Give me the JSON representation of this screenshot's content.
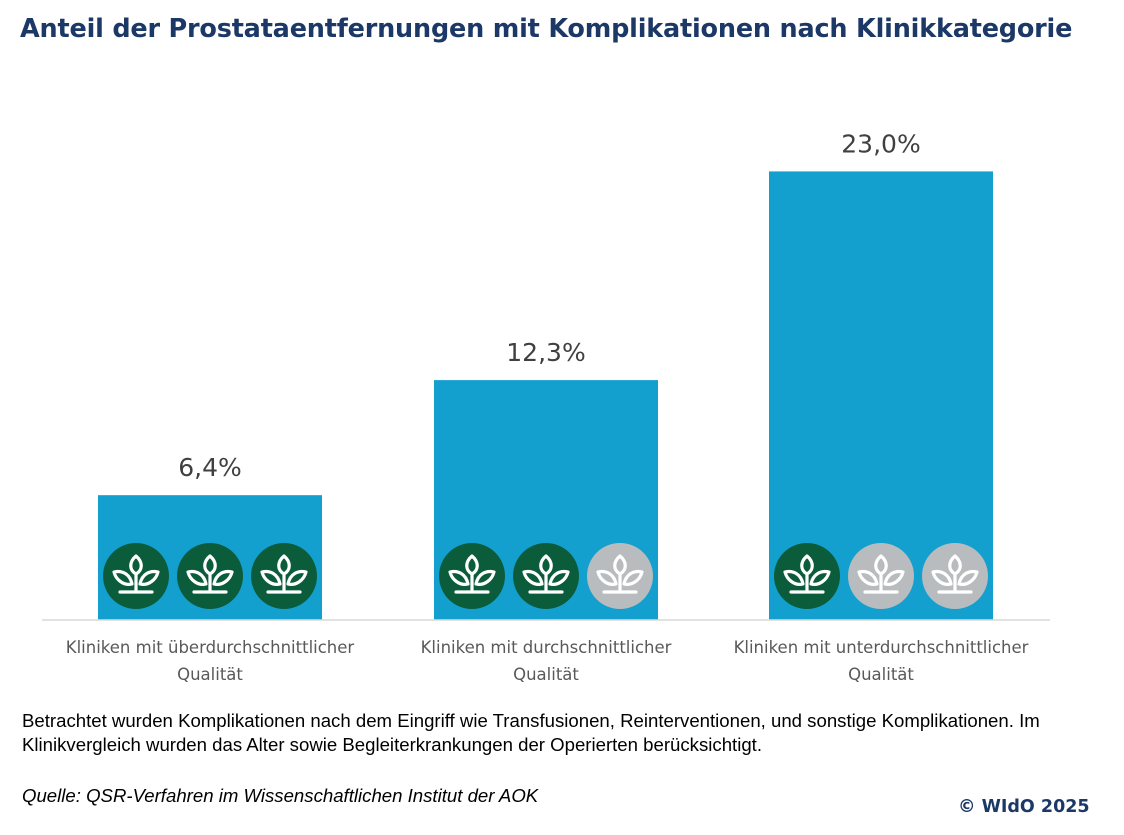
{
  "title": "Anteil der Prostataentfernungen mit Komplikationen nach Klinikkategorie",
  "chart_data": {
    "type": "bar",
    "title": "Anteil der Prostataentfernungen mit Komplikationen nach Klinikkategorie",
    "categories": [
      [
        "Kliniken mit überdurchschnittlicher",
        "Qualität"
      ],
      [
        "Kliniken mit durchschnittlicher",
        "Qualität"
      ],
      [
        "Kliniken mit unterdurchschnittlicher",
        "Qualität"
      ]
    ],
    "values": [
      6.4,
      12.3,
      23.0
    ],
    "value_labels": [
      "6,4%",
      "12,3%",
      "23,0%"
    ],
    "unit": "%",
    "ylim": [
      0,
      26.2
    ],
    "grid": false,
    "legend": "none",
    "quality_rating": [
      {
        "filled": 3,
        "of": 3
      },
      {
        "filled": 2,
        "of": 3
      },
      {
        "filled": 1,
        "of": 3
      }
    ],
    "colors": {
      "bar": "#14a0cf",
      "rating_filled": "#0a5c3b",
      "rating_empty": "#b8bcbf",
      "axis": "#d9d9d9"
    },
    "icon": "aok-tree-icon"
  },
  "footnote": "Betrachtet wurden Komplikationen nach dem Eingriff wie Transfusionen, Reinterventionen, und sonstige Komplikationen. Im Klinikvergleich wurden das Alter sowie Begleiterkrankungen der Operierten berücksichtigt.",
  "source": "Quelle: QSR-Verfahren im Wissenschaftlichen Institut der AOK",
  "copyright": "© WIdO 2025"
}
